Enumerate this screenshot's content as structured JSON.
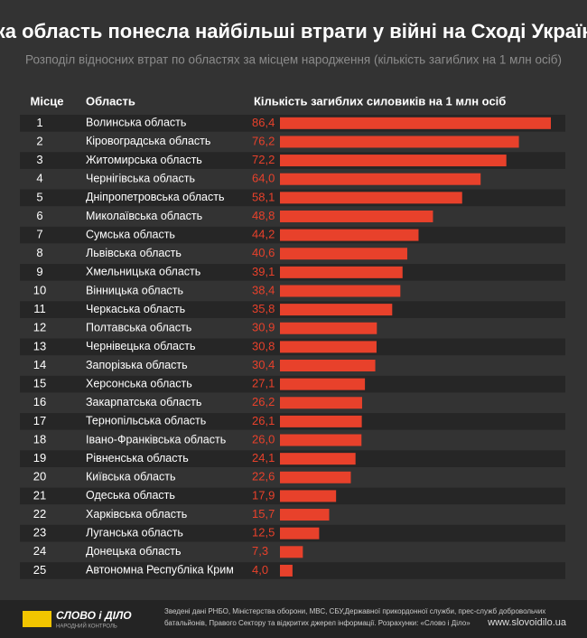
{
  "chart_data": {
    "type": "bar",
    "title": "Яка область понесла найбільші втрати у війні на Сході України",
    "subtitle": "Розподіл відносних втрат по областях за місцем народження (кількість загиблих на 1 млн осіб)",
    "rank_header": "Місце",
    "category_header": "Область",
    "value_header": "Кількість загиблих силовиків на 1 млн осіб",
    "ranks": [
      1,
      2,
      3,
      4,
      5,
      6,
      7,
      8,
      9,
      10,
      11,
      12,
      13,
      14,
      15,
      16,
      17,
      18,
      19,
      20,
      21,
      22,
      23,
      24,
      25
    ],
    "categories": [
      "Волинська область",
      "Кіровоградська область",
      "Житомирська область",
      "Чернігівська область",
      "Дніпропетровська область",
      "Миколаївська область",
      "Сумська область",
      "Львівська область",
      "Хмельницька область",
      "Вінницька область",
      "Черкаська область",
      "Полтавська область",
      "Чернівецька область",
      "Запорізька область",
      "Херсонська область",
      "Закарпатська область",
      "Тернопільська область",
      "Івано-Франківська область",
      "Рівненська область",
      "Київська область",
      "Одеська область",
      "Харківська область",
      "Луганська область",
      "Донецька область",
      "Автономна Республіка Крим"
    ],
    "values": [
      86.4,
      76.2,
      72.2,
      64.0,
      58.1,
      48.8,
      44.2,
      40.6,
      39.1,
      38.4,
      35.8,
      30.9,
      30.8,
      30.4,
      27.1,
      26.2,
      26.1,
      26.0,
      24.1,
      22.6,
      17.9,
      15.7,
      12.5,
      7.3,
      4.0
    ],
    "value_labels": [
      "86,4",
      "76,2",
      "72,2",
      "64,0",
      "58,1",
      "48,8",
      "44,2",
      "40,6",
      "39,1",
      "38,4",
      "35,8",
      "30,9",
      "30,8",
      "30,4",
      "27,1",
      "26,2",
      "26,1",
      "26,0",
      "24,1",
      "22,6",
      "17,9",
      "15,7",
      "12,5",
      "7,3",
      "4,0"
    ],
    "color": "#e8412b"
  },
  "footer": {
    "logo": "СЛОВО і ДІЛО",
    "logo_sub": "НАРОДНИЙ КОНТРОЛЬ",
    "source_line1": "Зведені дані РНБО, Міністерства оборони, МВС, СБУ,Державної прикордонної служби, прес-служб добровольчих",
    "source_line2": "батальйонів, Правого Сектору та відкритих джерел інформації.   Розрахунки: «Слово і Діло»",
    "url": "www.slovoidilo.ua"
  }
}
